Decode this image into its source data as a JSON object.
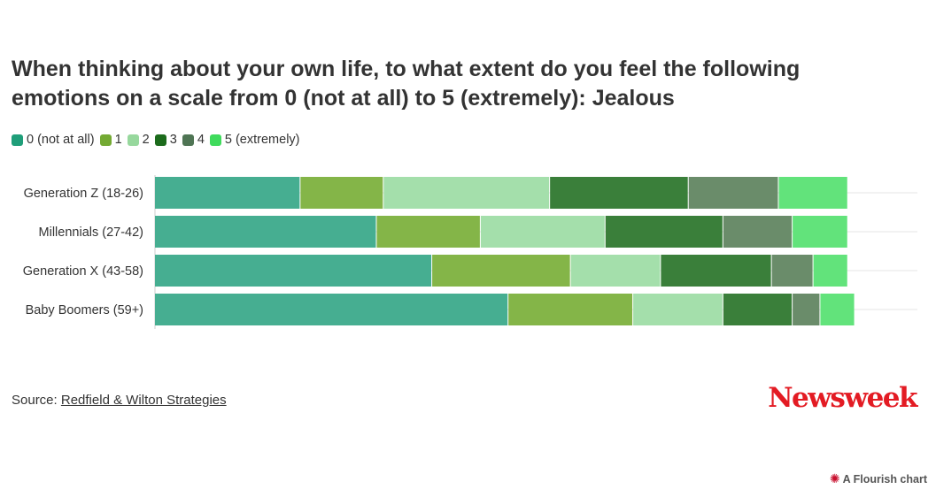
{
  "chart_data": {
    "type": "bar",
    "orientation": "horizontal",
    "stacked": true,
    "title": "When thinking about your own life, to what extent do you feel the following emotions on a scale from 0 (not at all) to 5 (extremely): Jealous",
    "categories": [
      "Generation Z (18-26)",
      "Millennials (27-42)",
      "Generation X (43-58)",
      "Baby Boomers (59+)"
    ],
    "series": [
      {
        "name": "0 (not at all)",
        "color": "#46ae91",
        "values": [
          21,
          32,
          40,
          51
        ]
      },
      {
        "name": "1",
        "color": "#84b548",
        "values": [
          12,
          15,
          20,
          18
        ]
      },
      {
        "name": "2",
        "color": "#a4dfab",
        "values": [
          24,
          18,
          13,
          13
        ]
      },
      {
        "name": "3",
        "color": "#3a7f3a",
        "values": [
          20,
          17,
          16,
          10
        ]
      },
      {
        "name": "4",
        "color": "#6a8c6a",
        "values": [
          13,
          10,
          6,
          4
        ]
      },
      {
        "name": "5 (extremely)",
        "color": "#62e37b",
        "values": [
          10,
          8,
          5,
          5
        ]
      }
    ],
    "xlim": [
      0,
      110
    ],
    "grid": true,
    "legend": "top-left"
  },
  "legend_swatch_colors": [
    "#1f9e79",
    "#74aa33",
    "#97d89d",
    "#1c6b1c",
    "#4f7554",
    "#3fdb5c"
  ],
  "source": {
    "label": "Source:",
    "link_text": "Redfield & Wilton Strategies"
  },
  "logo_text": "Newsweek",
  "credit": {
    "icon": "flourish-icon",
    "text": "A Flourish chart"
  }
}
